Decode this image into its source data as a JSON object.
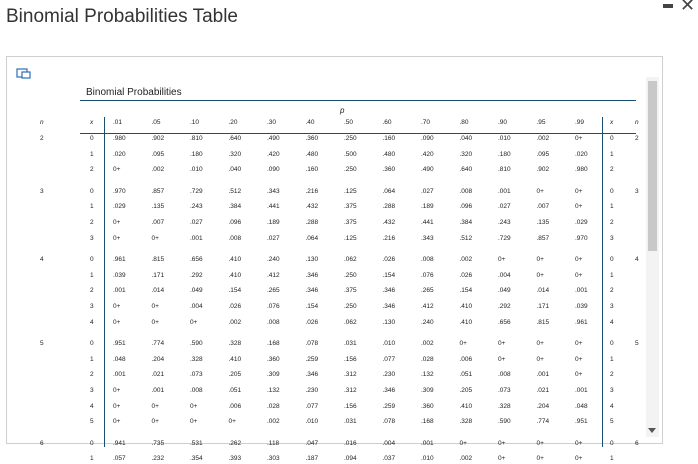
{
  "window": {
    "title": "Binomial Probabilities Table"
  },
  "table": {
    "title": "Binomial Probabilities",
    "p_label": "p",
    "col_n": "n",
    "col_x": "x",
    "p_values": [
      ".01",
      ".05",
      ".10",
      ".20",
      ".30",
      ".40",
      ".50",
      ".60",
      ".70",
      ".80",
      ".90",
      ".95",
      ".99"
    ],
    "rows": [
      {
        "n": "2",
        "x": "0",
        "v": [
          ".980",
          ".902",
          ".810",
          ".640",
          ".490",
          ".360",
          ".250",
          ".160",
          ".090",
          ".040",
          ".010",
          ".002",
          "0+"
        ],
        "rx": "0",
        "rn": "2"
      },
      {
        "n": "",
        "x": "1",
        "v": [
          ".020",
          ".095",
          ".180",
          ".320",
          ".420",
          ".480",
          ".500",
          ".480",
          ".420",
          ".320",
          ".180",
          ".095",
          ".020"
        ],
        "rx": "1",
        "rn": ""
      },
      {
        "n": "",
        "x": "2",
        "v": [
          "0+",
          ".002",
          ".010",
          ".040",
          ".090",
          ".160",
          ".250",
          ".360",
          ".490",
          ".640",
          ".810",
          ".902",
          ".980"
        ],
        "rx": "2",
        "rn": ""
      },
      {
        "n": "3",
        "x": "0",
        "v": [
          ".970",
          ".857",
          ".729",
          ".512",
          ".343",
          ".216",
          ".125",
          ".064",
          ".027",
          ".008",
          ".001",
          "0+",
          "0+"
        ],
        "rx": "0",
        "rn": "3"
      },
      {
        "n": "",
        "x": "1",
        "v": [
          ".029",
          ".135",
          ".243",
          ".384",
          ".441",
          ".432",
          ".375",
          ".288",
          ".189",
          ".096",
          ".027",
          ".007",
          "0+"
        ],
        "rx": "1",
        "rn": ""
      },
      {
        "n": "",
        "x": "2",
        "v": [
          "0+",
          ".007",
          ".027",
          ".096",
          ".189",
          ".288",
          ".375",
          ".432",
          ".441",
          ".384",
          ".243",
          ".135",
          ".029"
        ],
        "rx": "2",
        "rn": ""
      },
      {
        "n": "",
        "x": "3",
        "v": [
          "0+",
          "0+",
          ".001",
          ".008",
          ".027",
          ".064",
          ".125",
          ".216",
          ".343",
          ".512",
          ".729",
          ".857",
          ".970"
        ],
        "rx": "3",
        "rn": ""
      },
      {
        "n": "4",
        "x": "0",
        "v": [
          ".961",
          ".815",
          ".656",
          ".410",
          ".240",
          ".130",
          ".062",
          ".026",
          ".008",
          ".002",
          "0+",
          "0+",
          "0+"
        ],
        "rx": "0",
        "rn": "4"
      },
      {
        "n": "",
        "x": "1",
        "v": [
          ".039",
          ".171",
          ".292",
          ".410",
          ".412",
          ".346",
          ".250",
          ".154",
          ".076",
          ".026",
          ".004",
          "0+",
          "0+"
        ],
        "rx": "1",
        "rn": ""
      },
      {
        "n": "",
        "x": "2",
        "v": [
          ".001",
          ".014",
          ".049",
          ".154",
          ".265",
          ".346",
          ".375",
          ".346",
          ".265",
          ".154",
          ".049",
          ".014",
          ".001"
        ],
        "rx": "2",
        "rn": ""
      },
      {
        "n": "",
        "x": "3",
        "v": [
          "0+",
          "0+",
          ".004",
          ".026",
          ".076",
          ".154",
          ".250",
          ".346",
          ".412",
          ".410",
          ".292",
          ".171",
          ".039"
        ],
        "rx": "3",
        "rn": ""
      },
      {
        "n": "",
        "x": "4",
        "v": [
          "0+",
          "0+",
          "0+",
          ".002",
          ".008",
          ".026",
          ".062",
          ".130",
          ".240",
          ".410",
          ".656",
          ".815",
          ".961"
        ],
        "rx": "4",
        "rn": ""
      },
      {
        "n": "5",
        "x": "0",
        "v": [
          ".951",
          ".774",
          ".590",
          ".328",
          ".168",
          ".078",
          ".031",
          ".010",
          ".002",
          "0+",
          "0+",
          "0+",
          "0+"
        ],
        "rx": "0",
        "rn": "5"
      },
      {
        "n": "",
        "x": "1",
        "v": [
          ".048",
          ".204",
          ".328",
          ".410",
          ".360",
          ".259",
          ".156",
          ".077",
          ".028",
          ".006",
          "0+",
          "0+",
          "0+"
        ],
        "rx": "1",
        "rn": ""
      },
      {
        "n": "",
        "x": "2",
        "v": [
          ".001",
          ".021",
          ".073",
          ".205",
          ".309",
          ".346",
          ".312",
          ".230",
          ".132",
          ".051",
          ".008",
          ".001",
          "0+"
        ],
        "rx": "2",
        "rn": ""
      },
      {
        "n": "",
        "x": "3",
        "v": [
          "0+",
          ".001",
          ".008",
          ".051",
          ".132",
          ".230",
          ".312",
          ".346",
          ".309",
          ".205",
          ".073",
          ".021",
          ".001"
        ],
        "rx": "3",
        "rn": ""
      },
      {
        "n": "",
        "x": "4",
        "v": [
          "0+",
          "0+",
          "0+",
          ".006",
          ".028",
          ".077",
          ".156",
          ".259",
          ".360",
          ".410",
          ".328",
          ".204",
          ".048"
        ],
        "rx": "4",
        "rn": ""
      },
      {
        "n": "",
        "x": "5",
        "v": [
          "0+",
          "0+",
          "0+",
          "0+",
          ".002",
          ".010",
          ".031",
          ".078",
          ".168",
          ".328",
          ".590",
          ".774",
          ".951"
        ],
        "rx": "5",
        "rn": ""
      },
      {
        "n": "6",
        "x": "0",
        "v": [
          ".941",
          ".735",
          ".531",
          ".262",
          ".118",
          ".047",
          ".016",
          ".004",
          ".001",
          "0+",
          "0+",
          "0+",
          "0+"
        ],
        "rx": "0",
        "rn": "6"
      },
      {
        "n": "",
        "x": "1",
        "v": [
          ".057",
          ".232",
          ".354",
          ".393",
          ".303",
          ".187",
          ".094",
          ".037",
          ".010",
          ".002",
          "0+",
          "0+",
          "0+"
        ],
        "rx": "1",
        "rn": ""
      }
    ]
  },
  "colors": {
    "rule": "#1b4f72",
    "scroll_thumb": "#c8c8c8"
  },
  "icons": {
    "popout": "popout-icon",
    "minimize": "minimize-icon",
    "close": "close-icon"
  }
}
